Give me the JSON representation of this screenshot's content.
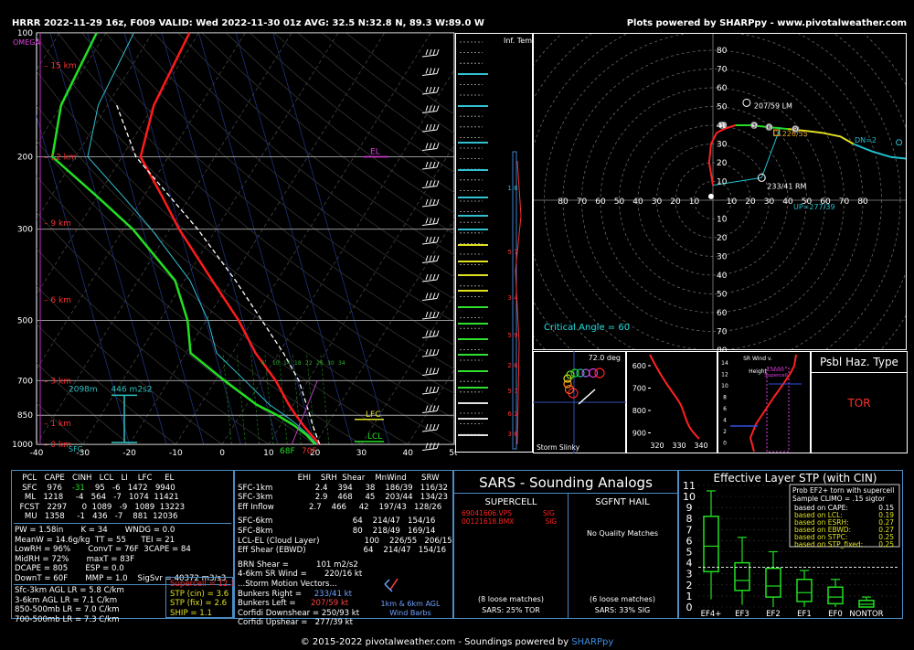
{
  "header": {
    "left": "HRRR 2022-11-29 16z, F009  VALID: Wed 2022-11-30 01z  AVG: 32.5 N:32.8 N, 89.3 W:89.0 W",
    "right": "Plots powered by SHARPpy - www.pivotalweather.com"
  },
  "skewt": {
    "pressures": [
      "100",
      "200",
      "300",
      "500",
      "700",
      "850",
      "1000"
    ],
    "omega_label": "OMEGA",
    "heights": [
      "15 km",
      "12 km",
      "9 km",
      "6 km",
      "3 km",
      "1 km",
      "0 km"
    ],
    "temps": [
      "-40",
      "-30",
      "-20",
      "-10",
      "0",
      "10",
      "20",
      "30",
      "40",
      "50"
    ],
    "el_label": "EL",
    "lfc_label": "LFC",
    "lcl_label": "LCL",
    "sfc_label": "SFC",
    "pbl_height": "2098m",
    "srh_label": "446 m2s2",
    "sfc_dew": "68F",
    "sfc_temp": "70F",
    "mixing_ratios": [
      "6",
      "10",
      "14",
      "18",
      "22",
      "26",
      "30",
      "34"
    ]
  },
  "inf_temp": {
    "label": "Inf. Temp.",
    "values": [
      "1.8",
      "5.7",
      "3.4",
      "5.9",
      "2.6",
      "5.7",
      "6.3",
      "3.6"
    ]
  },
  "hodograph": {
    "rings": [
      "10",
      "20",
      "30",
      "40",
      "50",
      "60",
      "70",
      "80"
    ],
    "lm_label": "207/59 LM",
    "rm_label": "233/41 RM",
    "mean_label": "226/55",
    "dn_label": "DN=2",
    "up_label": "UP=277/39",
    "critical_angle": "Critical Angle = 60",
    "points": [
      "1",
      "3",
      "6",
      "9"
    ]
  },
  "slinky": {
    "angle": "72.0 deg",
    "label": "Storm Slinky"
  },
  "theta": {
    "pressures": [
      "600",
      "700",
      "800",
      "900"
    ],
    "temps": [
      "320",
      "330",
      "340"
    ]
  },
  "srwind": {
    "title": "SR Wind v. Height",
    "ticks": [
      "14",
      "12",
      "10",
      "8",
      "6",
      "4",
      "2",
      "0"
    ],
    "classic": "Classic Supercell"
  },
  "haz": {
    "title": "Psbl Haz. Type",
    "value": "TOR"
  },
  "parcels": {
    "headers": [
      "PCL",
      "CAPE",
      "CINH",
      "LCL",
      "LI",
      "LFC",
      "EL"
    ],
    "rows": [
      [
        "SFC",
        "976",
        "-31",
        "95",
        "-6",
        "1472",
        "9940"
      ],
      [
        "ML",
        "1218",
        "-4",
        "564",
        "-7",
        "1074",
        "11421"
      ],
      [
        "FCST",
        "2297",
        "0",
        "1089",
        "-9",
        "1089",
        "13223"
      ],
      [
        "MU",
        "1358",
        "-1",
        "436",
        "-7",
        "881",
        "12036"
      ]
    ]
  },
  "indices": [
    [
      "PW = 1.58in",
      "K = 34",
      "WNDG = 0.0"
    ],
    [
      "MeanW = 14.6g/kg",
      "TT = 55",
      "TEI = 21"
    ],
    [
      "LowRH = 96%",
      "ConvT = 76F",
      "3CAPE = 84"
    ],
    [
      "MidRH = 72%",
      "maxT = 83F",
      ""
    ],
    [
      "DCAPE = 805",
      "ESP = 0.0",
      ""
    ],
    [
      "DownT = 60F",
      "MMP = 1.0",
      "SigSvr = 40372 m3/s3"
    ]
  ],
  "lapse": [
    "Sfc-3km AGL LR = 5.8 C/km",
    "3-6km AGL LR = 7.1 C/km",
    "850-500mb LR = 7.0 C/km",
    "700-500mb LR = 7.3 C/km"
  ],
  "composite": [
    "Supercell = 12.1",
    "STP (cin) = 3.6",
    "STP (fix) = 2.6",
    "SHIP = 1.1"
  ],
  "kin": {
    "headers": [
      "EHI",
      "SRH",
      "Shear",
      "MnWind",
      "SRW"
    ],
    "rows": [
      [
        "SFC-1km",
        "2.4",
        "394",
        "38",
        "186/39",
        "116/32"
      ],
      [
        "SFC-3km",
        "2.9",
        "468",
        "45",
        "203/44",
        "134/23"
      ],
      [
        "Eff Inflow",
        "2.7",
        "466",
        "42",
        "197/43",
        "128/26"
      ],
      [
        "SFC-6km",
        "",
        "",
        "64",
        "214/47",
        "154/16"
      ],
      [
        "SFC-8km",
        "",
        "",
        "80",
        "218/49",
        "169/14"
      ],
      [
        "LCL-EL (Cloud Layer)",
        "",
        "",
        "100",
        "226/55",
        "206/15"
      ],
      [
        "Eff Shear (EBWD)",
        "",
        "",
        "64",
        "214/47",
        "154/16"
      ]
    ],
    "brn_shear": "BRN Shear =",
    "brn_value": "101 m2/s2",
    "sr_wind": "4-6km SR Wind =",
    "sr_value": "220/16 kt",
    "motion_title": "...Storm Motion Vectors...",
    "motions": [
      [
        "Bunkers Right =",
        "233/41 kt"
      ],
      [
        "Bunkers Left =",
        "207/59 kt"
      ],
      [
        "Corfidi Downshear =",
        "250/93 kt"
      ],
      [
        "Corfidi Upshear =",
        "277/39 kt"
      ]
    ],
    "barb_label1": "1km & 6km AGL",
    "barb_label2": "Wind Barbs"
  },
  "sars": {
    "title": "SARS - Sounding Analogs",
    "supercell": "SUPERCELL",
    "sgfnt_hail": "SGFNT HAIL",
    "matches": [
      [
        "69041606.VPS",
        "SIG"
      ],
      [
        "00121618.BMX",
        "SIG"
      ]
    ],
    "no_quality": "No Quality Matches",
    "sc_loose": "(8 loose matches)",
    "sc_tor": "SARS: 25% TOR",
    "hail_loose": "(6 loose matches)",
    "hail_sig": "SARS: 33% SIG"
  },
  "stp": {
    "title": "Effective Layer STP (with CIN)",
    "yticks": [
      "0",
      "1",
      "2",
      "3",
      "4",
      "5",
      "6",
      "7",
      "8",
      "9",
      "10",
      "11"
    ],
    "categories": [
      "EF4+",
      "EF3",
      "EF2",
      "EF1",
      "EF0",
      "NONTOR"
    ],
    "prob_title": "Prob EF2+ torn with supercell",
    "sample": "Sample CLIMO = .15 sigtor",
    "probs": [
      [
        "based on CAPE:",
        "0.15"
      ],
      [
        "based on LCL:",
        "0.19"
      ],
      [
        "based on ESRH:",
        "0.27"
      ],
      [
        "based on EBWD:",
        "0.27"
      ],
      [
        "based on STPC:",
        "0.25"
      ],
      [
        "based on STP_fixed:",
        "0.25"
      ]
    ]
  },
  "footer": {
    "text": "© 2015-2022 pivotalweather.com - Soundings powered by ",
    "link": "SHARPpy"
  },
  "chart_data": {
    "type": "line",
    "title": "HRRR 2022-11-29 16z, F009  VALID: Wed 2022-11-30 01z",
    "xlabel": "",
    "ylabel": "",
    "xlim": [
      -40,
      50
    ],
    "ylim": [
      1000,
      100
    ],
    "series": [
      {
        "name": "Temperature",
        "pressure": [
          1000,
          950,
          900,
          850,
          800,
          700,
          600,
          500,
          400,
          300,
          250,
          200,
          150,
          100
        ],
        "temp_c": [
          21,
          18,
          15,
          12,
          9,
          3,
          -5,
          -13,
          -24,
          -38,
          -46,
          -56,
          -60,
          -62
        ]
      },
      {
        "name": "Dewpoint",
        "pressure": [
          1000,
          950,
          900,
          850,
          800,
          700,
          600,
          500,
          400,
          300,
          250,
          200,
          150,
          100
        ],
        "dewp_c": [
          20,
          17,
          13,
          8,
          2,
          -8,
          -19,
          -24,
          -32,
          -48,
          -60,
          -75,
          -80,
          -82
        ]
      }
    ],
    "stp_boxes": [
      {
        "cat": "EF4+",
        "min": 0.7,
        "q1": 3.2,
        "med": 5.5,
        "q3": 8.2,
        "max": 10.5
      },
      {
        "cat": "EF3",
        "min": 0.2,
        "q1": 1.5,
        "med": 2.4,
        "q3": 4.0,
        "max": 6.3
      },
      {
        "cat": "EF2",
        "min": 0.0,
        "q1": 0.9,
        "med": 1.9,
        "q3": 3.5,
        "max": 5.0
      },
      {
        "cat": "EF1",
        "min": 0.0,
        "q1": 0.5,
        "med": 1.3,
        "q3": 2.5,
        "max": 3.3
      },
      {
        "cat": "EF0",
        "min": 0.0,
        "q1": 0.3,
        "med": 0.9,
        "q3": 1.8,
        "max": 2.5
      },
      {
        "cat": "NONTOR",
        "min": 0.0,
        "q1": 0.0,
        "med": 0.25,
        "q3": 0.6,
        "max": 0.9
      }
    ]
  }
}
